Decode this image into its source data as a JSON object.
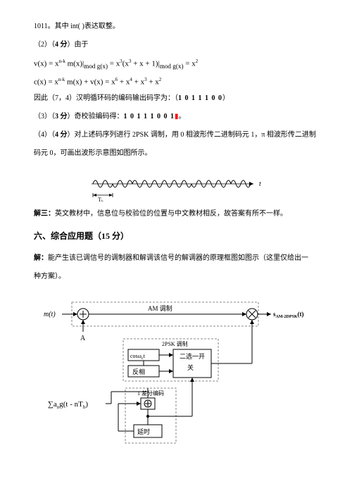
{
  "line1": "1011。其中 int( )表达取整。",
  "line2_prefix": "（2）（",
  "line2_score": "4 分",
  "line2_suffix": "）由于",
  "formula1": "v(x) = x^{n-k} m(x)|_{mod g(x)} = x^3(x^3 + x + 1)|_{mod g(x)} = x^2",
  "formula2": "c(x) = x^{n-k} m(x) + v(x) = x^6 + x^4 + x^3 + x^2",
  "line3_prefix": "因此（7，4）汉明循环码的编码输出码字为：（",
  "line3_code": "1 0 1 1 1 0 0",
  "line3_suffix": "）",
  "line4_prefix": "（3）（",
  "line4_score": "3 分",
  "line4_suffix": "）奇校验编码得：",
  "line4_code": "1 0 1 1 1 0 0 1",
  "line4_end": "。",
  "line5_prefix": "（4）（",
  "line5_score": "4 分",
  "line5_suffix": "）对上述码序列进行 2PSK 调制，用 0 相波形传二进制码元 1，π 相波形传二进制",
  "line6": "码元 0，可画出波形示意图如图所示。",
  "jiesan_prefix": "解三：",
  "jiesan_text": "英文教材中，信息位与校验位的位置与中文教材相反，故答案有所不一样。",
  "section6": "六、综合应用题（15 分）",
  "jie_prefix": "解：",
  "jie_text": "能产生该已调信号的调制器和解调该信号的解调器的原理框图如图示（这里仅给出一",
  "jie_text2": "种方案）。",
  "wave": {
    "t_label": "t",
    "tb_label": "Tb",
    "phases": [
      0,
      180,
      0,
      0,
      0,
      180,
      180,
      0
    ]
  },
  "diagram": {
    "input_label": "m(t)",
    "A_label": "A",
    "am_label": "AM 调制",
    "output_label": "s_{AM-2DPSK}(t)",
    "cos_label": "cosω_c t",
    "fanxiang": "反相",
    "erxuanyi": "二选一开",
    "guan": "关",
    "psk_label": "2PSK 调制",
    "diff_label": "1 差分编码",
    "yanshi": "延时",
    "sum_formula": "∑a_n g(t - nT_b)"
  },
  "colors": {
    "text": "#000000",
    "bg": "#ffffff",
    "red": "#ff0000",
    "dashed": "#888888"
  }
}
